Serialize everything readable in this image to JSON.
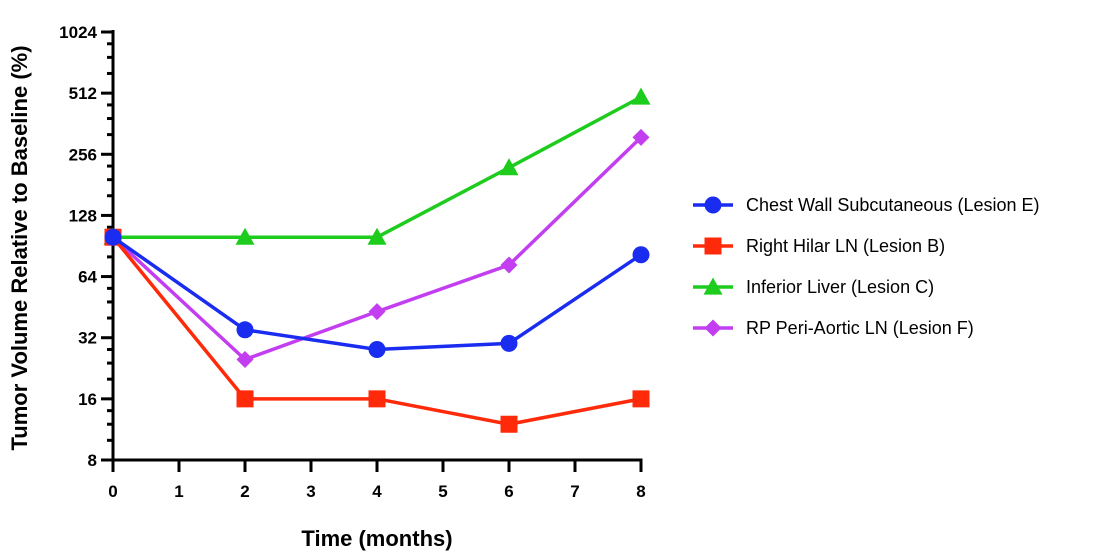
{
  "chart_data": {
    "type": "line",
    "title": "",
    "xlabel": "Time (months)",
    "ylabel": "Tumor Volume Relative to Baseline (%)",
    "y_scale": "log2",
    "xlim": [
      0,
      8
    ],
    "ylim": [
      8,
      1024
    ],
    "x_ticks": [
      0,
      1,
      2,
      3,
      4,
      5,
      6,
      7,
      8
    ],
    "y_ticks": [
      8,
      16,
      32,
      64,
      128,
      256,
      512,
      1024
    ],
    "grid": false,
    "legend_position": "right",
    "series": [
      {
        "name": "Chest Wall Subcutaneous (Lesion E)",
        "color": "#1a2cf0",
        "marker": "circle",
        "x": [
          0,
          2,
          4,
          6,
          8
        ],
        "y": [
          100,
          35,
          28,
          30,
          82
        ]
      },
      {
        "name": "Right Hilar LN (Lesion B)",
        "color": "#ff2a0a",
        "marker": "square",
        "x": [
          0,
          2,
          4,
          6,
          8
        ],
        "y": [
          100,
          16,
          16,
          12,
          16
        ]
      },
      {
        "name": "Inferior Liver (Lesion C)",
        "color": "#1dcc1d",
        "marker": "triangle",
        "x": [
          0,
          2,
          4,
          6,
          8
        ],
        "y": [
          100,
          100,
          100,
          220,
          490
        ]
      },
      {
        "name": "RP Peri-Aortic LN (Lesion F)",
        "color": "#c23ef0",
        "marker": "diamond",
        "x": [
          0,
          2,
          4,
          6,
          8
        ],
        "y": [
          100,
          25,
          43,
          73,
          310
        ]
      }
    ]
  }
}
